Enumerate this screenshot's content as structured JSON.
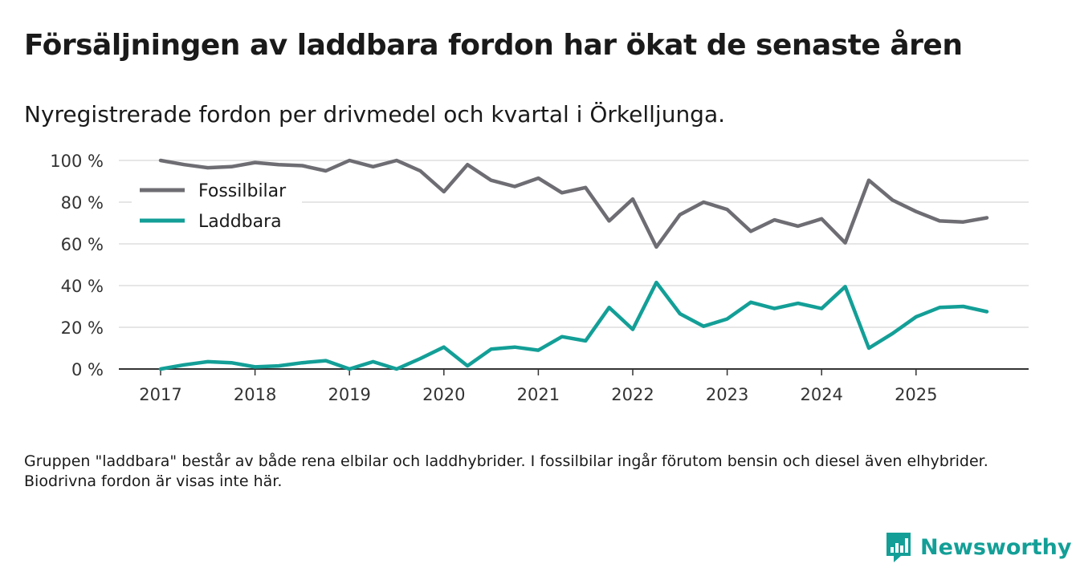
{
  "header": {
    "title": "Försäljningen av laddbara fordon har ökat de senaste åren",
    "subtitle": "Nyregistrerade fordon per drivmedel och kvartal i Örkelljunga."
  },
  "note": "Gruppen \"laddbara\" består av både rena elbilar och laddhybrider. I fossilbilar ingår förutom bensin och diesel även elhybrider. Biodrivna fordon är visas inte här.",
  "brand": {
    "name": "Newsworthy",
    "logo_icon": "bar-chart-speech-bubble-icon",
    "color": "#139f97"
  },
  "chart_data": {
    "type": "line",
    "title": "Försäljningen av laddbara fordon har ökat de senaste åren",
    "subtitle": "Nyregistrerade fordon per drivmedel och kvartal i Örkelljunga.",
    "xlabel": "",
    "ylabel": "",
    "x_start_year": 2017,
    "x_step": 0.25,
    "xlim": [
      2016.75,
      2026.45
    ],
    "ylim": [
      0,
      100
    ],
    "yticks": [
      0,
      20,
      40,
      60,
      80,
      100
    ],
    "ytick_labels": [
      "0 %",
      "20 %",
      "40 %",
      "60 %",
      "80 %",
      "100 %"
    ],
    "xticks": [
      2017,
      2018,
      2019,
      2020,
      2021,
      2022,
      2023,
      2024,
      2025
    ],
    "xtick_labels": [
      "2017",
      "2018",
      "2019",
      "2020",
      "2021",
      "2022",
      "2023",
      "2024",
      "2025"
    ],
    "grid": true,
    "legend_position": "top-left",
    "series": [
      {
        "name": "Fossilbilar",
        "color": "#6e6d73",
        "values": [
          100,
          98,
          96.5,
          97,
          99,
          98,
          97.5,
          95,
          100,
          97,
          100,
          95,
          85,
          98,
          90.5,
          87.5,
          91.5,
          84.5,
          87,
          71,
          81.5,
          58.5,
          74,
          80,
          76.5,
          66,
          71.5,
          68.5,
          72,
          60.5,
          90.5,
          81,
          75.5,
          71,
          70.5,
          72.5
        ]
      },
      {
        "name": "Laddbara",
        "color": "#139f97",
        "values": [
          0,
          2,
          3.5,
          3,
          1,
          1.5,
          3,
          4,
          0,
          3.5,
          0,
          5,
          10.5,
          1.5,
          9.5,
          10.5,
          9,
          15.5,
          13.5,
          29.5,
          19,
          41.5,
          26.5,
          20.5,
          24,
          32,
          29,
          31.5,
          29,
          39.5,
          10,
          17,
          25,
          29.5,
          30,
          27.5
        ]
      }
    ]
  }
}
